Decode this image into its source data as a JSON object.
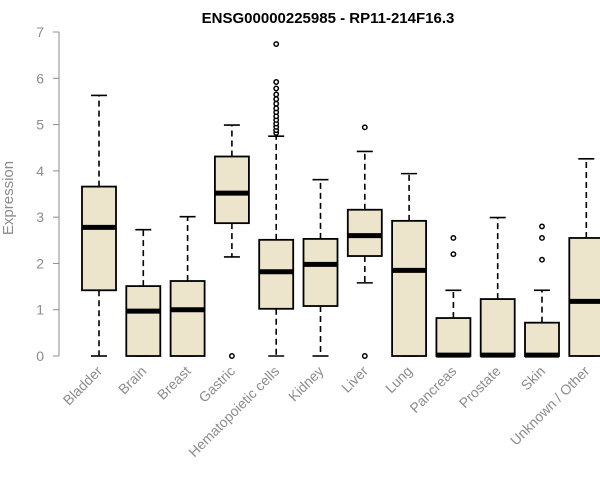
{
  "chart_data": {
    "type": "boxplot",
    "title": "ENSG00000225985 - RP11-214F16.3",
    "xlabel": "",
    "ylabel": "Expression",
    "ylim": [
      0,
      7
    ],
    "yticks": [
      "0",
      "1",
      "2",
      "3",
      "4",
      "5",
      "6",
      "7"
    ],
    "categories": [
      "Bladder",
      "Brain",
      "Breast",
      "Gastric",
      "Hematopoietic cells",
      "Kidney",
      "Liver",
      "Lung",
      "Pancreas",
      "Prostate",
      "Skin",
      "Unknown / Other"
    ],
    "series": [
      {
        "name": "Bladder",
        "whisker_low": 0,
        "q1": 1.42,
        "median": 2.78,
        "q3": 3.66,
        "whisker_high": 5.63,
        "outliers": []
      },
      {
        "name": "Brain",
        "whisker_low": 0,
        "q1": 0,
        "median": 0.97,
        "q3": 1.51,
        "whisker_high": 2.73,
        "outliers": []
      },
      {
        "name": "Breast",
        "whisker_low": 0,
        "q1": 0,
        "median": 1.0,
        "q3": 1.62,
        "whisker_high": 3.01,
        "outliers": []
      },
      {
        "name": "Gastric",
        "whisker_low": 2.14,
        "q1": 2.87,
        "median": 3.52,
        "q3": 4.31,
        "whisker_high": 4.99,
        "outliers": [
          0
        ]
      },
      {
        "name": "Hematopoietic cells",
        "whisker_low": 0,
        "q1": 1.02,
        "median": 1.82,
        "q3": 2.51,
        "whisker_high": 4.75,
        "outliers": [
          4.82,
          4.88,
          4.95,
          5.02,
          5.1,
          5.18,
          5.27,
          5.35,
          5.45,
          5.55,
          5.65,
          5.78,
          5.92,
          6.74
        ]
      },
      {
        "name": "Kidney",
        "whisker_low": 0,
        "q1": 1.08,
        "median": 1.98,
        "q3": 2.53,
        "whisker_high": 3.81,
        "outliers": []
      },
      {
        "name": "Liver",
        "whisker_low": 1.58,
        "q1": 2.16,
        "median": 2.6,
        "q3": 3.16,
        "whisker_high": 4.42,
        "outliers": [
          0,
          4.94
        ]
      },
      {
        "name": "Lung",
        "whisker_low": 0,
        "q1": 0,
        "median": 1.85,
        "q3": 2.92,
        "whisker_high": 3.94,
        "outliers": []
      },
      {
        "name": "Pancreas",
        "whisker_low": 0,
        "q1": 0,
        "median": 0.02,
        "q3": 0.82,
        "whisker_high": 1.42,
        "outliers": [
          2.2,
          2.55
        ]
      },
      {
        "name": "Prostate",
        "whisker_low": 0,
        "q1": 0,
        "median": 0.02,
        "q3": 1.23,
        "whisker_high": 2.99,
        "outliers": []
      },
      {
        "name": "Skin",
        "whisker_low": 0,
        "q1": 0,
        "median": 0.02,
        "q3": 0.72,
        "whisker_high": 1.42,
        "outliers": [
          2.08,
          2.55,
          2.8
        ]
      },
      {
        "name": "Unknown / Other",
        "whisker_low": 0,
        "q1": 0,
        "median": 1.18,
        "q3": 2.55,
        "whisker_high": 4.26,
        "outliers": []
      }
    ],
    "colors": {
      "box_fill": "#ede5cb",
      "stroke": "#000000",
      "axis": "#8c8c8c"
    },
    "grid": false,
    "legend": "none"
  }
}
